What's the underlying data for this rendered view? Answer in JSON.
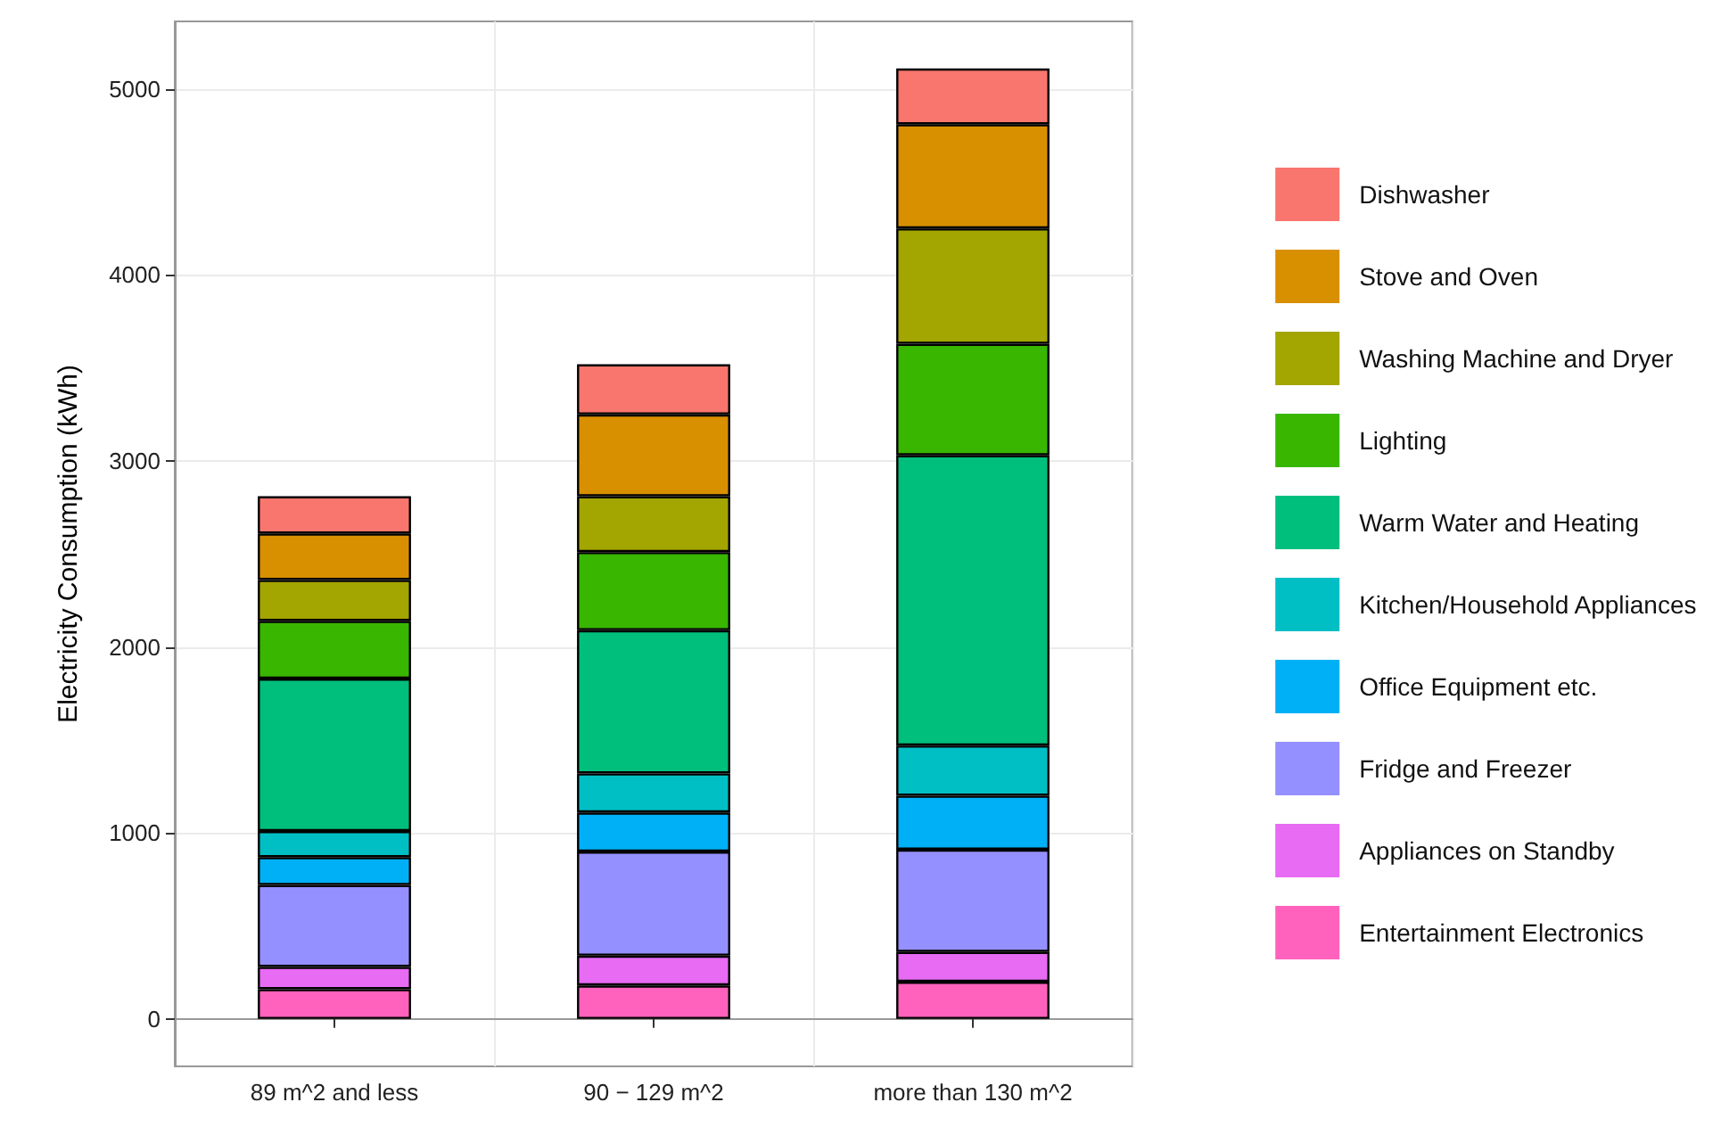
{
  "chart_data": {
    "type": "bar",
    "stacked": true,
    "ylabel": "Electricity Consumption (kWh)",
    "categories": [
      "89 m^2 and less",
      "90 − 129 m^2",
      "more than 130 m^2"
    ],
    "series": [
      {
        "name": "Entertainment Electronics",
        "color": "#ff62bc",
        "values": [
          160,
          180,
          200
        ]
      },
      {
        "name": "Appliances on Standby",
        "color": "#e76bf3",
        "values": [
          120,
          160,
          160
        ]
      },
      {
        "name": "Fridge and Freezer",
        "color": "#9590ff",
        "values": [
          440,
          560,
          550
        ]
      },
      {
        "name": "Office Equipment etc.",
        "color": "#00b0f6",
        "values": [
          150,
          210,
          290
        ]
      },
      {
        "name": "Kitchen/Household Appliances",
        "color": "#00bfc4",
        "values": [
          140,
          210,
          270
        ]
      },
      {
        "name": "Warm Water and Heating",
        "color": "#00bf7d",
        "values": [
          820,
          770,
          1560
        ]
      },
      {
        "name": "Lighting",
        "color": "#39b600",
        "values": [
          310,
          420,
          600
        ]
      },
      {
        "name": "Washing Machine and Dryer",
        "color": "#a3a500",
        "values": [
          220,
          300,
          620
        ]
      },
      {
        "name": "Stove and Oven",
        "color": "#d89000",
        "values": [
          250,
          440,
          560
        ]
      },
      {
        "name": "Dishwasher",
        "color": "#f8766d",
        "values": [
          200,
          270,
          300
        ]
      }
    ],
    "ylim": [
      -255,
      5363
    ],
    "yticks": [
      0,
      1000,
      2000,
      3000,
      4000,
      5000
    ],
    "grid": true,
    "legend": "right"
  }
}
